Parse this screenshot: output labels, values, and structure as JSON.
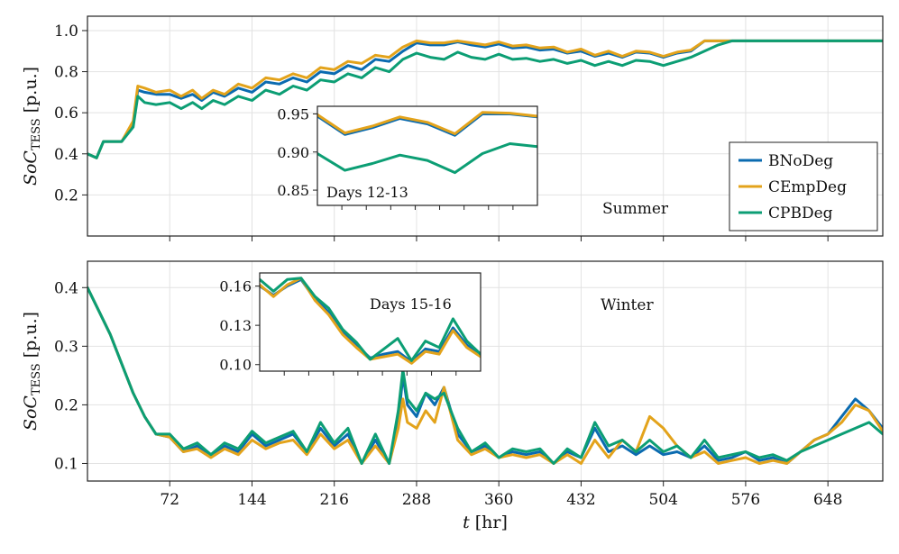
{
  "chart_data": [
    {
      "type": "line",
      "panel": "summer",
      "annotation": "Summer",
      "ylabel_main": "SoC",
      "ylabel_sub": "TESS",
      "ylabel_unit": "[p.u.]",
      "xlim": [
        0,
        696
      ],
      "ylim": [
        0.0,
        1.07
      ],
      "yticks": [
        0.2,
        0.4,
        0.6,
        0.8,
        1.0
      ],
      "ytick_labels": [
        "0.2",
        "0.4",
        "0.6",
        "0.8",
        "1.0"
      ],
      "xticks": [
        72,
        144,
        216,
        288,
        360,
        432,
        504,
        576,
        648
      ],
      "legend": [
        "BNoDeg",
        "CEmpDeg",
        "CPBDeg"
      ],
      "series": [
        {
          "name": "BNoDeg",
          "x": [
            0,
            8,
            14,
            20,
            30,
            40,
            44,
            50,
            60,
            72,
            82,
            92,
            100,
            110,
            120,
            132,
            144,
            156,
            168,
            180,
            192,
            204,
            216,
            228,
            240,
            252,
            264,
            276,
            288,
            300,
            312,
            324,
            336,
            348,
            360,
            372,
            384,
            396,
            408,
            420,
            432,
            444,
            456,
            468,
            480,
            492,
            504,
            516,
            528,
            540,
            552,
            564,
            576,
            600,
            624,
            648,
            672,
            696
          ],
          "values": [
            0.4,
            0.38,
            0.46,
            0.46,
            0.46,
            0.55,
            0.71,
            0.7,
            0.69,
            0.69,
            0.67,
            0.69,
            0.66,
            0.7,
            0.68,
            0.72,
            0.7,
            0.75,
            0.74,
            0.77,
            0.75,
            0.8,
            0.79,
            0.83,
            0.81,
            0.86,
            0.85,
            0.9,
            0.94,
            0.93,
            0.93,
            0.945,
            0.93,
            0.92,
            0.935,
            0.915,
            0.92,
            0.905,
            0.91,
            0.89,
            0.9,
            0.875,
            0.89,
            0.87,
            0.895,
            0.89,
            0.87,
            0.89,
            0.9,
            0.95,
            0.95,
            0.95,
            0.95,
            0.95,
            0.95,
            0.95,
            0.95,
            0.95
          ]
        },
        {
          "name": "CEmpDeg",
          "x": [
            0,
            8,
            14,
            20,
            30,
            40,
            44,
            50,
            60,
            72,
            82,
            92,
            100,
            110,
            120,
            132,
            144,
            156,
            168,
            180,
            192,
            204,
            216,
            228,
            240,
            252,
            264,
            276,
            288,
            300,
            312,
            324,
            336,
            348,
            360,
            372,
            384,
            396,
            408,
            420,
            432,
            444,
            456,
            468,
            480,
            492,
            504,
            516,
            528,
            540,
            552,
            564,
            576,
            600,
            624,
            648,
            672,
            696
          ],
          "values": [
            0.4,
            0.38,
            0.46,
            0.46,
            0.46,
            0.56,
            0.73,
            0.72,
            0.7,
            0.71,
            0.68,
            0.71,
            0.67,
            0.71,
            0.69,
            0.74,
            0.72,
            0.77,
            0.76,
            0.79,
            0.77,
            0.82,
            0.81,
            0.85,
            0.84,
            0.88,
            0.87,
            0.92,
            0.95,
            0.94,
            0.94,
            0.95,
            0.94,
            0.93,
            0.945,
            0.925,
            0.93,
            0.915,
            0.92,
            0.895,
            0.91,
            0.88,
            0.9,
            0.875,
            0.9,
            0.895,
            0.875,
            0.895,
            0.905,
            0.95,
            0.95,
            0.95,
            0.95,
            0.95,
            0.95,
            0.95,
            0.95,
            0.95
          ]
        },
        {
          "name": "CPBDeg",
          "x": [
            0,
            8,
            14,
            20,
            30,
            40,
            44,
            50,
            60,
            72,
            82,
            92,
            100,
            110,
            120,
            132,
            144,
            156,
            168,
            180,
            192,
            204,
            216,
            228,
            240,
            252,
            264,
            276,
            288,
            300,
            312,
            324,
            336,
            348,
            360,
            372,
            384,
            396,
            408,
            420,
            432,
            444,
            456,
            468,
            480,
            492,
            504,
            516,
            528,
            540,
            552,
            564,
            576,
            600,
            624,
            648,
            672,
            696
          ],
          "values": [
            0.4,
            0.38,
            0.46,
            0.46,
            0.46,
            0.53,
            0.68,
            0.65,
            0.64,
            0.65,
            0.62,
            0.65,
            0.62,
            0.66,
            0.64,
            0.68,
            0.66,
            0.71,
            0.69,
            0.73,
            0.71,
            0.76,
            0.75,
            0.79,
            0.77,
            0.82,
            0.8,
            0.86,
            0.89,
            0.87,
            0.86,
            0.895,
            0.87,
            0.86,
            0.885,
            0.86,
            0.865,
            0.85,
            0.86,
            0.84,
            0.855,
            0.83,
            0.85,
            0.83,
            0.855,
            0.85,
            0.83,
            0.85,
            0.87,
            0.9,
            0.93,
            0.95,
            0.95,
            0.95,
            0.95,
            0.95,
            0.95,
            0.95
          ]
        }
      ],
      "inset": {
        "label": "Days 12-13",
        "xlim": [
          264,
          312
        ],
        "ylim": [
          0.83,
          0.96
        ],
        "yticks": [
          0.85,
          0.9,
          0.95
        ],
        "ytick_labels": [
          "0.85",
          "0.90",
          "0.95"
        ],
        "series": [
          {
            "name": "BNoDeg",
            "x": [
              264,
              270,
              276,
              282,
              288,
              294,
              300,
              306,
              312
            ],
            "values": [
              0.947,
              0.923,
              0.932,
              0.944,
              0.937,
              0.922,
              0.95,
              0.95,
              0.946
            ]
          },
          {
            "name": "CEmpDeg",
            "x": [
              264,
              270,
              276,
              282,
              288,
              294,
              300,
              306,
              312
            ],
            "values": [
              0.949,
              0.925,
              0.934,
              0.946,
              0.939,
              0.924,
              0.952,
              0.951,
              0.947
            ]
          },
          {
            "name": "CPBDeg",
            "x": [
              264,
              270,
              276,
              282,
              288,
              294,
              300,
              306,
              312
            ],
            "values": [
              0.898,
              0.876,
              0.885,
              0.896,
              0.889,
              0.873,
              0.898,
              0.911,
              0.907
            ]
          }
        ]
      }
    },
    {
      "type": "line",
      "panel": "winter",
      "annotation": "Winter",
      "ylabel_main": "SoC",
      "ylabel_sub": "TESS",
      "ylabel_unit": "[p.u.]",
      "xlabel_var": "t",
      "xlabel_unit": "[hr]",
      "xlim": [
        0,
        696
      ],
      "ylim": [
        0.07,
        0.445
      ],
      "yticks": [
        0.1,
        0.2,
        0.3,
        0.4
      ],
      "ytick_labels": [
        "0.1",
        "0.2",
        "0.3",
        "0.4"
      ],
      "xticks": [
        72,
        144,
        216,
        288,
        360,
        432,
        504,
        576,
        648
      ],
      "xtick_labels": [
        "72",
        "144",
        "216",
        "288",
        "360",
        "432",
        "504",
        "576",
        "648"
      ],
      "series": [
        {
          "name": "BNoDeg",
          "x": [
            0,
            10,
            20,
            30,
            40,
            50,
            60,
            72,
            84,
            96,
            108,
            120,
            132,
            144,
            156,
            168,
            180,
            192,
            204,
            216,
            228,
            240,
            252,
            264,
            272,
            276,
            280,
            288,
            296,
            304,
            312,
            324,
            336,
            348,
            360,
            372,
            384,
            396,
            408,
            420,
            432,
            444,
            456,
            468,
            480,
            492,
            504,
            516,
            528,
            540,
            552,
            564,
            576,
            588,
            600,
            612,
            624,
            636,
            648,
            660,
            672,
            684,
            696
          ],
          "values": [
            0.4,
            0.36,
            0.32,
            0.27,
            0.22,
            0.18,
            0.15,
            0.145,
            0.12,
            0.13,
            0.115,
            0.13,
            0.12,
            0.15,
            0.13,
            0.14,
            0.15,
            0.12,
            0.16,
            0.13,
            0.15,
            0.1,
            0.14,
            0.1,
            0.17,
            0.25,
            0.2,
            0.18,
            0.22,
            0.2,
            0.23,
            0.15,
            0.12,
            0.13,
            0.11,
            0.12,
            0.115,
            0.12,
            0.1,
            0.12,
            0.11,
            0.16,
            0.12,
            0.13,
            0.115,
            0.13,
            0.115,
            0.12,
            0.11,
            0.13,
            0.105,
            0.11,
            0.12,
            0.105,
            0.11,
            0.1,
            0.12,
            0.14,
            0.15,
            0.18,
            0.21,
            0.19,
            0.16
          ]
        },
        {
          "name": "CEmpDeg",
          "x": [
            0,
            10,
            20,
            30,
            40,
            50,
            60,
            72,
            84,
            96,
            108,
            120,
            132,
            144,
            156,
            168,
            180,
            192,
            204,
            216,
            228,
            240,
            252,
            264,
            272,
            276,
            280,
            288,
            296,
            304,
            312,
            324,
            336,
            348,
            360,
            372,
            384,
            396,
            408,
            420,
            432,
            444,
            456,
            468,
            480,
            492,
            504,
            516,
            528,
            540,
            552,
            564,
            576,
            588,
            600,
            612,
            624,
            636,
            648,
            660,
            672,
            684,
            696
          ],
          "values": [
            0.4,
            0.36,
            0.32,
            0.27,
            0.22,
            0.18,
            0.15,
            0.145,
            0.12,
            0.125,
            0.11,
            0.125,
            0.115,
            0.14,
            0.125,
            0.135,
            0.14,
            0.115,
            0.15,
            0.125,
            0.14,
            0.1,
            0.13,
            0.1,
            0.16,
            0.21,
            0.17,
            0.16,
            0.19,
            0.17,
            0.23,
            0.14,
            0.115,
            0.125,
            0.11,
            0.115,
            0.11,
            0.115,
            0.1,
            0.115,
            0.1,
            0.14,
            0.11,
            0.14,
            0.12,
            0.18,
            0.16,
            0.13,
            0.11,
            0.12,
            0.1,
            0.105,
            0.11,
            0.1,
            0.105,
            0.1,
            0.12,
            0.14,
            0.15,
            0.17,
            0.2,
            0.19,
            0.155
          ]
        },
        {
          "name": "CPBDeg",
          "x": [
            0,
            10,
            20,
            30,
            40,
            50,
            60,
            72,
            84,
            96,
            108,
            120,
            132,
            144,
            156,
            168,
            180,
            192,
            204,
            216,
            228,
            240,
            252,
            264,
            272,
            276,
            280,
            288,
            296,
            304,
            312,
            324,
            336,
            348,
            360,
            372,
            384,
            396,
            408,
            420,
            432,
            444,
            456,
            468,
            480,
            492,
            504,
            516,
            528,
            540,
            552,
            564,
            576,
            588,
            600,
            612,
            624,
            636,
            648,
            660,
            672,
            684,
            696
          ],
          "values": [
            0.4,
            0.36,
            0.32,
            0.27,
            0.22,
            0.18,
            0.15,
            0.15,
            0.125,
            0.135,
            0.115,
            0.135,
            0.125,
            0.155,
            0.135,
            0.145,
            0.155,
            0.12,
            0.17,
            0.135,
            0.16,
            0.1,
            0.15,
            0.1,
            0.19,
            0.26,
            0.21,
            0.19,
            0.22,
            0.21,
            0.22,
            0.16,
            0.12,
            0.135,
            0.11,
            0.125,
            0.12,
            0.125,
            0.1,
            0.125,
            0.11,
            0.17,
            0.13,
            0.14,
            0.12,
            0.14,
            0.12,
            0.13,
            0.11,
            0.14,
            0.11,
            0.115,
            0.12,
            0.11,
            0.115,
            0.105,
            0.12,
            0.13,
            0.14,
            0.15,
            0.16,
            0.17,
            0.15
          ]
        }
      ],
      "inset": {
        "label": "Days 15-16",
        "xlim": [
          336,
          384
        ],
        "ylim": [
          0.095,
          0.17
        ],
        "yticks": [
          0.1,
          0.13,
          0.16
        ],
        "ytick_labels": [
          "0.10",
          "0.13",
          "0.16"
        ],
        "series": [
          {
            "name": "BNoDeg",
            "x": [
              336,
              339,
              342,
              345,
              348,
              351,
              354,
              357,
              360,
              363,
              366,
              369,
              372,
              375,
              378,
              381,
              384
            ],
            "values": [
              0.16,
              0.153,
              0.16,
              0.165,
              0.15,
              0.14,
              0.125,
              0.115,
              0.105,
              0.108,
              0.11,
              0.102,
              0.112,
              0.11,
              0.128,
              0.115,
              0.107
            ]
          },
          {
            "name": "CEmpDeg",
            "x": [
              336,
              339,
              342,
              345,
              348,
              351,
              354,
              357,
              360,
              363,
              366,
              369,
              372,
              375,
              378,
              381,
              384
            ],
            "values": [
              0.161,
              0.152,
              0.161,
              0.166,
              0.149,
              0.138,
              0.123,
              0.113,
              0.104,
              0.106,
              0.108,
              0.101,
              0.11,
              0.108,
              0.126,
              0.113,
              0.106
            ]
          },
          {
            "name": "CPBDeg",
            "x": [
              336,
              339,
              342,
              345,
              348,
              351,
              354,
              357,
              360,
              363,
              366,
              369,
              372,
              375,
              378,
              381,
              384
            ],
            "values": [
              0.165,
              0.156,
              0.165,
              0.166,
              0.152,
              0.143,
              0.127,
              0.117,
              0.104,
              0.112,
              0.12,
              0.103,
              0.118,
              0.113,
              0.135,
              0.118,
              0.108
            ]
          }
        ]
      }
    }
  ],
  "colors": {
    "BNoDeg": "#0b6bb0",
    "CEmpDeg": "#e3a31b",
    "CPBDeg": "#0c9e74"
  }
}
